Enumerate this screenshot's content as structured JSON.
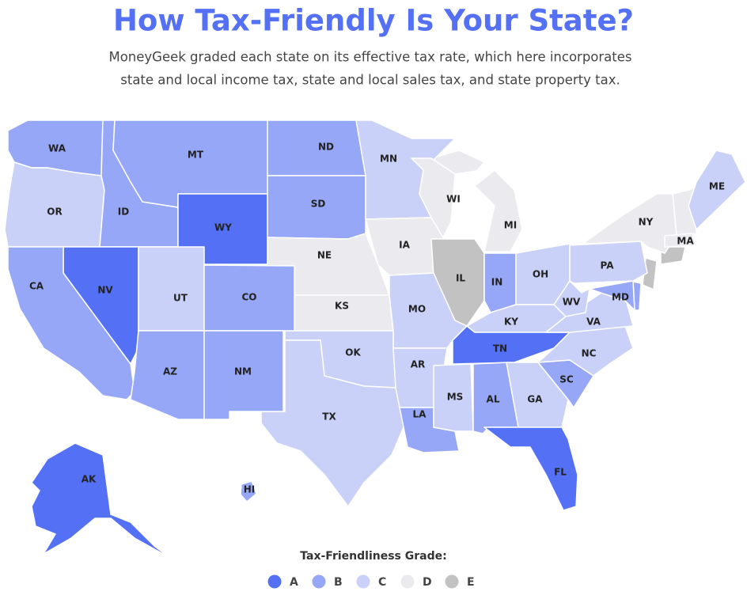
{
  "title": "How Tax-Friendly Is Your State?",
  "subtitle_lines": [
    "MoneyGeek graded each state on its effective tax rate, which here incorporates",
    "state and local income tax, state and local sales tax, and state property tax."
  ],
  "states": [
    {
      "label": "WA",
      "grade": "B"
    },
    {
      "label": "OR",
      "grade": "C"
    },
    {
      "label": "ID",
      "grade": "B"
    },
    {
      "label": "MT",
      "grade": "B"
    },
    {
      "label": "WY",
      "grade": "A"
    },
    {
      "label": "ND",
      "grade": "B"
    },
    {
      "label": "SD",
      "grade": "B"
    },
    {
      "label": "NE",
      "grade": "D"
    },
    {
      "label": "KS",
      "grade": "D"
    },
    {
      "label": "MN",
      "grade": "C"
    },
    {
      "label": "IA",
      "grade": "D"
    },
    {
      "label": "WI",
      "grade": "D"
    },
    {
      "label": "MI",
      "grade": "D"
    },
    {
      "label": "IL",
      "grade": "E"
    },
    {
      "label": "IN",
      "grade": "B"
    },
    {
      "label": "OH",
      "grade": "C"
    },
    {
      "label": "KY",
      "grade": "C"
    },
    {
      "label": "TN",
      "grade": "A"
    },
    {
      "label": "MO",
      "grade": "C"
    },
    {
      "label": "OK",
      "grade": "C"
    },
    {
      "label": "TX",
      "grade": "C"
    },
    {
      "label": "AR",
      "grade": "C"
    },
    {
      "label": "LA",
      "grade": "B"
    },
    {
      "label": "MS",
      "grade": "C"
    },
    {
      "label": "AL",
      "grade": "B"
    },
    {
      "label": "GA",
      "grade": "C"
    },
    {
      "label": "FL",
      "grade": "A"
    },
    {
      "label": "SC",
      "grade": "B"
    },
    {
      "label": "NC",
      "grade": "C"
    },
    {
      "label": "VA",
      "grade": "C"
    },
    {
      "label": "WV",
      "grade": "C"
    },
    {
      "label": "MD",
      "grade": "B"
    },
    {
      "label": "PA",
      "grade": "C"
    },
    {
      "label": "NY",
      "grade": "D"
    },
    {
      "label": "ME",
      "grade": "C"
    },
    {
      "label": "MA",
      "grade": "D"
    },
    {
      "label": "NV",
      "grade": "A"
    },
    {
      "label": "CA",
      "grade": "B"
    },
    {
      "label": "UT",
      "grade": "C"
    },
    {
      "label": "CO",
      "grade": "B"
    },
    {
      "label": "AZ",
      "grade": "B"
    },
    {
      "label": "NM",
      "grade": "B"
    },
    {
      "label": "AK",
      "grade": "A"
    },
    {
      "label": "HI",
      "grade": "B"
    }
  ],
  "legend": {
    "title": "Tax-Friendliness Grade:",
    "items": [
      {
        "grade": "A",
        "color": "#5470f5"
      },
      {
        "grade": "B",
        "color": "#97a7f7"
      },
      {
        "grade": "C",
        "color": "#c9d1f8"
      },
      {
        "grade": "D",
        "color": "#ebebef"
      },
      {
        "grade": "E",
        "color": "#c2c2c2"
      }
    ]
  }
}
